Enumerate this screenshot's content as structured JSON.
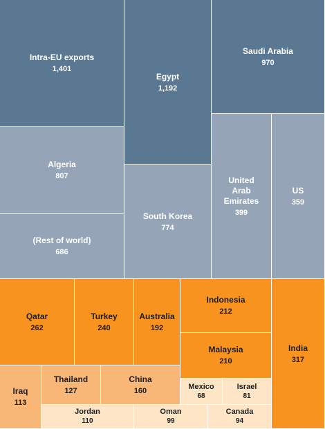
{
  "chart_data": {
    "type": "treemap",
    "colors": {
      "dark": "#5b7892",
      "mid": "#95a5b7",
      "orange": "#f7931e",
      "lightorange": "#f9b777",
      "pale": "#fde5c5"
    },
    "items": [
      {
        "id": "intra-eu",
        "label": "Intra-EU exports",
        "value": 1401,
        "value_text": "1,401",
        "color": "dark"
      },
      {
        "id": "egypt",
        "label": "Egypt",
        "value": 1192,
        "value_text": "1,192",
        "color": "dark"
      },
      {
        "id": "saudi-arabia",
        "label": "Saudi Arabia",
        "value": 970,
        "value_text": "970",
        "color": "dark"
      },
      {
        "id": "algeria",
        "label": "Algeria",
        "value": 807,
        "value_text": "807",
        "color": "mid"
      },
      {
        "id": "south-korea",
        "label": "South Korea",
        "value": 774,
        "value_text": "774",
        "color": "mid"
      },
      {
        "id": "uae",
        "label": "United\nArab\nEmirates",
        "value": 399,
        "value_text": "399",
        "color": "mid"
      },
      {
        "id": "us",
        "label": "US",
        "value": 359,
        "value_text": "359",
        "color": "mid"
      },
      {
        "id": "rest-of-world",
        "label": "(Rest of world)",
        "value": 686,
        "value_text": "686",
        "color": "mid"
      },
      {
        "id": "qatar",
        "label": "Qatar",
        "value": 262,
        "value_text": "262",
        "color": "orange"
      },
      {
        "id": "turkey",
        "label": "Turkey",
        "value": 240,
        "value_text": "240",
        "color": "orange"
      },
      {
        "id": "australia",
        "label": "Australia",
        "value": 192,
        "value_text": "192",
        "color": "orange"
      },
      {
        "id": "indonesia",
        "label": "Indonesia",
        "value": 212,
        "value_text": "212",
        "color": "orange"
      },
      {
        "id": "malaysia",
        "label": "Malaysia",
        "value": 210,
        "value_text": "210",
        "color": "orange"
      },
      {
        "id": "india",
        "label": "India",
        "value": 317,
        "value_text": "317",
        "color": "orange"
      },
      {
        "id": "iraq",
        "label": "Iraq",
        "value": 113,
        "value_text": "113",
        "color": "lightorange"
      },
      {
        "id": "thailand",
        "label": "Thailand",
        "value": 127,
        "value_text": "127",
        "color": "lightorange"
      },
      {
        "id": "china",
        "label": "China",
        "value": 160,
        "value_text": "160",
        "color": "lightorange"
      },
      {
        "id": "mexico",
        "label": "Mexico",
        "value": 68,
        "value_text": "68",
        "color": "pale"
      },
      {
        "id": "israel",
        "label": "Israel",
        "value": 81,
        "value_text": "81",
        "color": "pale"
      },
      {
        "id": "jordan",
        "label": "Jordan",
        "value": 110,
        "value_text": "110",
        "color": "pale"
      },
      {
        "id": "oman",
        "label": "Oman",
        "value": 99,
        "value_text": "99",
        "color": "pale"
      },
      {
        "id": "canada",
        "label": "Canada",
        "value": 94,
        "value_text": "94",
        "color": "pale"
      }
    ]
  }
}
